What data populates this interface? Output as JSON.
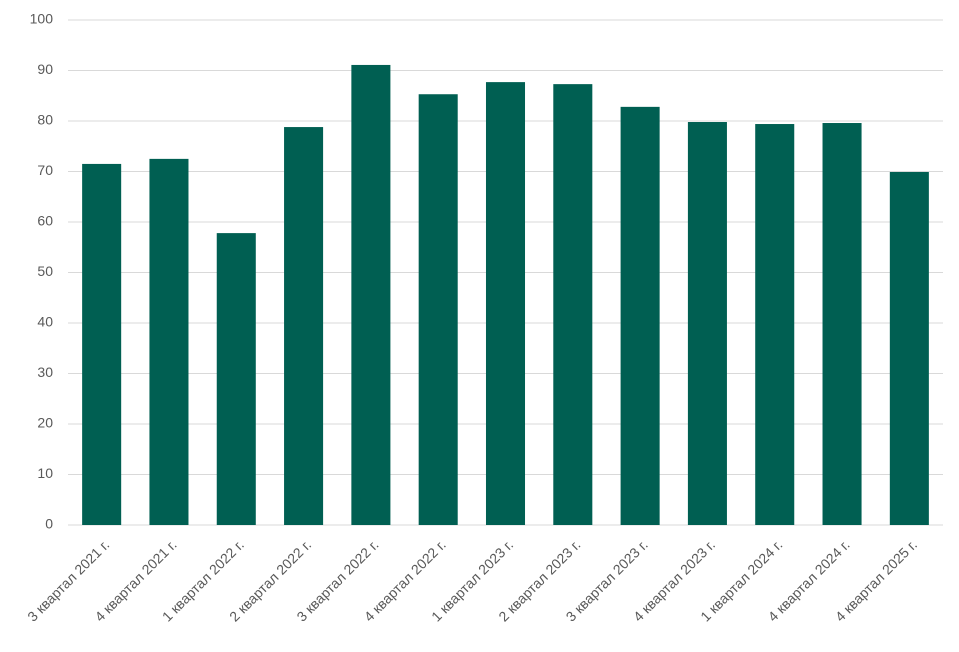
{
  "chart_data": {
    "type": "bar",
    "categories": [
      "3 квартал 2021 г.",
      "4 квартал 2021 г.",
      "1 квартал 2022 г.",
      "2 квартал 2022 г.",
      "3 квартал 2022 г.",
      "4 квартал 2022 г.",
      "1 квартал 2023 г.",
      "2 квартал 2023 г.",
      "3 квартал 2023 г.",
      "4 квартал 2023 г.",
      "1 квартал 2024 г.",
      "4 квартал 2024 г.",
      "4 квартал 2025 г."
    ],
    "values": [
      71.5,
      72.5,
      57.8,
      78.8,
      91.1,
      85.3,
      87.7,
      87.3,
      82.8,
      79.8,
      79.4,
      79.6,
      69.9
    ],
    "color": "#005f52",
    "ylim": [
      0,
      100
    ],
    "yticks": [
      0,
      10,
      20,
      30,
      40,
      50,
      60,
      70,
      80,
      90,
      100
    ],
    "grid": true
  }
}
